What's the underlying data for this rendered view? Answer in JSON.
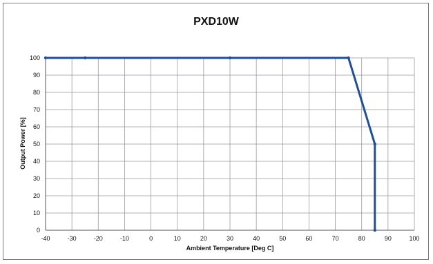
{
  "chart_data": {
    "type": "line",
    "title": "PXD10W",
    "xlabel": "Ambient Temperature [Deg C]",
    "ylabel": "Output Power [%]",
    "xlim": [
      -40,
      100
    ],
    "ylim": [
      0,
      100
    ],
    "x_ticks": [
      -40,
      -30,
      -20,
      -10,
      0,
      10,
      20,
      30,
      40,
      50,
      60,
      70,
      80,
      90,
      100
    ],
    "y_ticks": [
      0,
      10,
      20,
      30,
      40,
      50,
      60,
      70,
      80,
      90,
      100
    ],
    "x_tick_labels": [
      "-40",
      "-30",
      "-20",
      "-10",
      "0",
      "10",
      "20",
      "30",
      "40",
      "50",
      "60",
      "70",
      "80",
      "90",
      "100"
    ],
    "y_tick_labels": [
      "0",
      "10",
      "20",
      "30",
      "40",
      "50",
      "60",
      "70",
      "80",
      "90",
      "100"
    ],
    "grid": true,
    "legend": "none",
    "series": [
      {
        "color": "#1f4e9a",
        "x": [
          -40,
          -25,
          30,
          75,
          85,
          85
        ],
        "y": [
          100,
          100,
          100,
          100,
          50,
          0
        ]
      }
    ]
  }
}
